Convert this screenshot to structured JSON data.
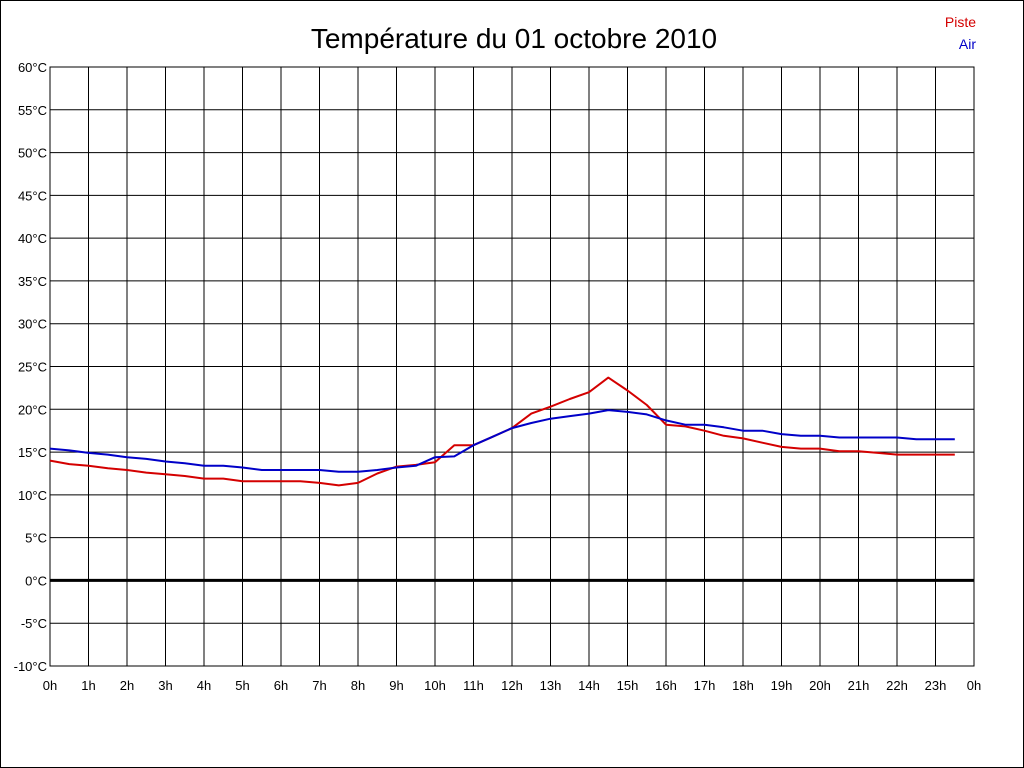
{
  "chart_data": {
    "type": "line",
    "title": "Température du 01 octobre 2010",
    "xlabel": "",
    "ylabel": "",
    "x_ticks": [
      "0h",
      "1h",
      "2h",
      "3h",
      "4h",
      "5h",
      "6h",
      "7h",
      "8h",
      "9h",
      "10h",
      "11h",
      "12h",
      "13h",
      "14h",
      "15h",
      "16h",
      "17h",
      "18h",
      "19h",
      "20h",
      "21h",
      "22h",
      "23h",
      "0h"
    ],
    "y_ticks": [
      "60°C",
      "55°C",
      "50°C",
      "45°C",
      "40°C",
      "35°C",
      "30°C",
      "25°C",
      "20°C",
      "15°C",
      "10°C",
      "5°C",
      "0°C",
      "-5°C",
      "-10°C"
    ],
    "xlim": [
      0,
      24
    ],
    "ylim": [
      -10,
      60
    ],
    "grid": true,
    "legend_position": "top-right",
    "series": [
      {
        "name": "Piste",
        "color": "#d40000",
        "x": [
          0,
          0.5,
          1,
          1.5,
          2,
          2.5,
          3,
          3.5,
          4,
          4.5,
          5,
          5.5,
          6,
          6.5,
          7,
          7.5,
          8,
          8.5,
          9,
          9.5,
          10,
          10.5,
          11,
          11.5,
          12,
          12.5,
          13,
          13.5,
          14,
          14.5,
          15,
          15.5,
          16,
          16.5,
          17,
          17.5,
          18,
          18.5,
          19,
          19.5,
          20,
          20.5,
          21,
          21.5,
          22,
          22.5,
          23,
          23.5
        ],
        "values": [
          14,
          13.6,
          13.4,
          13.1,
          12.9,
          12.6,
          12.4,
          12.2,
          11.9,
          11.9,
          11.6,
          11.6,
          11.6,
          11.6,
          11.4,
          11.1,
          11.4,
          12.5,
          13.3,
          13.5,
          13.8,
          15.8,
          15.8,
          16.8,
          17.8,
          19.5,
          20.3,
          21.2,
          22,
          23.7,
          22.2,
          20.5,
          18.2,
          18,
          17.5,
          16.9,
          16.6,
          16.1,
          15.6,
          15.4,
          15.4,
          15.1,
          15.1,
          14.9,
          14.7,
          14.7,
          14.7,
          14.7
        ]
      },
      {
        "name": "Air",
        "color": "#0000c8",
        "x": [
          0,
          0.5,
          1,
          1.5,
          2,
          2.5,
          3,
          3.5,
          4,
          4.5,
          5,
          5.5,
          6,
          6.5,
          7,
          7.5,
          8,
          8.5,
          9,
          9.5,
          10,
          10.5,
          11,
          11.5,
          12,
          12.5,
          13,
          13.5,
          14,
          14.5,
          15,
          15.5,
          16,
          16.5,
          17,
          17.5,
          18,
          18.5,
          19,
          19.5,
          20,
          20.5,
          21,
          21.5,
          22,
          22.5,
          23,
          23.5
        ],
        "values": [
          15.4,
          15.2,
          14.9,
          14.7,
          14.4,
          14.2,
          13.9,
          13.7,
          13.4,
          13.4,
          13.2,
          12.9,
          12.9,
          12.9,
          12.9,
          12.7,
          12.7,
          12.9,
          13.2,
          13.4,
          14.4,
          14.5,
          15.8,
          16.8,
          17.8,
          18.4,
          18.9,
          19.2,
          19.5,
          19.9,
          19.7,
          19.4,
          18.7,
          18.2,
          18.2,
          17.9,
          17.5,
          17.5,
          17.1,
          16.9,
          16.9,
          16.7,
          16.7,
          16.7,
          16.7,
          16.5,
          16.5,
          16.5
        ]
      }
    ]
  }
}
